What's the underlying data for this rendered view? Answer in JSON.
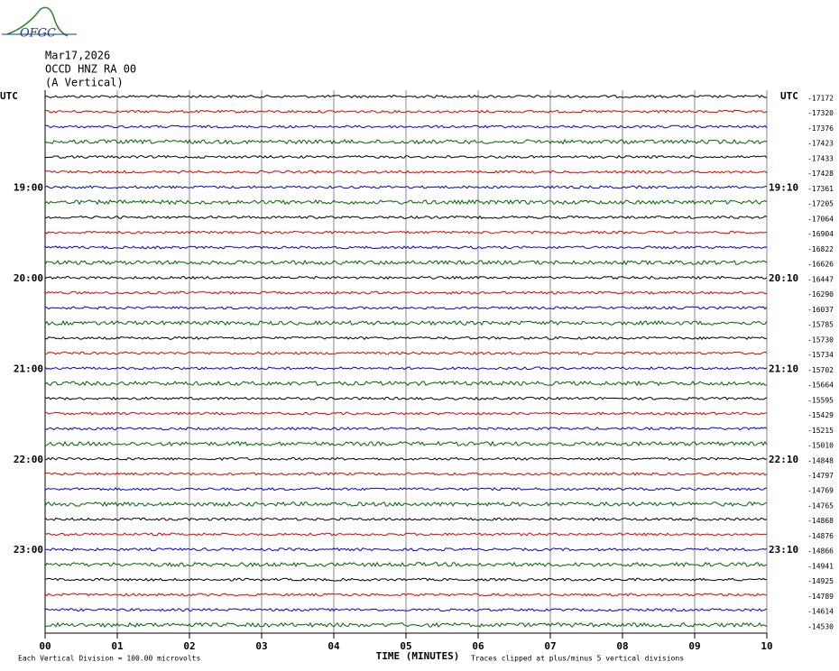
{
  "logo": "OFGC",
  "header": {
    "date": "Mar17,2026",
    "station": "OCCD HNZ RA 00",
    "component": "(A Vertical)"
  },
  "chart_data": {
    "type": "helicorder",
    "left_axis_title": "UTC",
    "right_axis_title": "UTC",
    "row_colors": [
      "#000000",
      "#e00000",
      "#0000d8",
      "#006400"
    ],
    "left_labels": [
      null,
      null,
      null,
      null,
      null,
      null,
      "19:00",
      null,
      null,
      null,
      null,
      null,
      "20:00",
      null,
      null,
      null,
      null,
      null,
      "21:00",
      null,
      null,
      null,
      null,
      null,
      "22:00",
      null,
      null,
      null,
      null,
      null,
      "23:00",
      null,
      null,
      null,
      null,
      null
    ],
    "right_labels": [
      null,
      null,
      null,
      null,
      null,
      null,
      "19:10",
      null,
      null,
      null,
      null,
      null,
      "20:10",
      null,
      null,
      null,
      null,
      null,
      "21:10",
      null,
      null,
      null,
      null,
      null,
      "22:10",
      null,
      null,
      null,
      null,
      null,
      "23:10",
      null,
      null,
      null,
      null,
      null
    ],
    "row_offsets": [
      -17172,
      -17320,
      -17376,
      -17423,
      -17433,
      -17428,
      -17361,
      -17205,
      -17064,
      -16904,
      -16822,
      -16626,
      -16447,
      -16290,
      -16037,
      -15785,
      -15730,
      -15734,
      -15702,
      -15664,
      -15595,
      -15429,
      -15215,
      -15010,
      -14848,
      -14797,
      -14769,
      -14765,
      -14868,
      -14876,
      -14866,
      -14941,
      -14925,
      -14789,
      -14614,
      -14530
    ],
    "xlim": [
      0,
      10
    ],
    "xticks": [
      {
        "value": 0,
        "label": "00"
      },
      {
        "value": 1,
        "label": "01"
      },
      {
        "value": 2,
        "label": "02"
      },
      {
        "value": 3,
        "label": "03"
      },
      {
        "value": 4,
        "label": "04"
      },
      {
        "value": 5,
        "label": "05"
      },
      {
        "value": 6,
        "label": "06"
      },
      {
        "value": 7,
        "label": "07"
      },
      {
        "value": 8,
        "label": "08"
      },
      {
        "value": 9,
        "label": "09"
      },
      {
        "value": 10,
        "label": "10"
      }
    ],
    "x_label": "TIME (MINUTES)",
    "scale_note": "Each Vertical Division =  100.00 microvolts",
    "clip_note": "Traces clipped at plus/minus 5 vertical divisions"
  }
}
